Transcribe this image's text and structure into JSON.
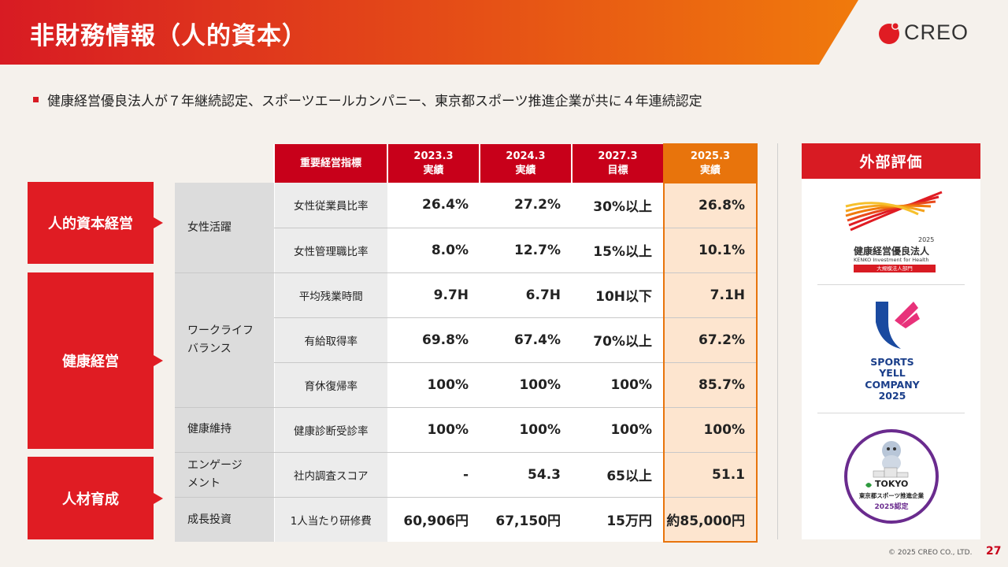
{
  "header": {
    "title": "非財務情報（人的資本）",
    "logo_text": "CREO",
    "gradient": [
      "#d81b23",
      "#f07a0c"
    ]
  },
  "summary": "健康経営優良法人が７年継続認定、スポーツエールカンパニー、東京都スポーツ推進企業が共に４年連続認定",
  "groups": [
    {
      "label": "人的資本経営"
    },
    {
      "label": "健康経営"
    },
    {
      "label": "人材育成"
    }
  ],
  "table": {
    "columns": [
      "重要経営指標",
      "2023.3\n実績",
      "2024.3\n実績",
      "2027.3\n目標",
      "2025.3\n実績"
    ],
    "categories": [
      "女性活躍",
      "ワークライフ\nバランス",
      "健康維持",
      "エンゲージ\nメント",
      "成長投資"
    ],
    "rows": [
      {
        "indicator": "女性従業員比率",
        "v2023": "26.4%",
        "v2024": "27.2%",
        "target": "30%以上",
        "v2025": "26.8%"
      },
      {
        "indicator": "女性管理職比率",
        "v2023": "8.0%",
        "v2024": "12.7%",
        "target": "15%以上",
        "v2025": "10.1%"
      },
      {
        "indicator": "平均残業時間",
        "v2023": "9.7H",
        "v2024": "6.7H",
        "target": "10H以下",
        "v2025": "7.1H"
      },
      {
        "indicator": "有給取得率",
        "v2023": "69.8%",
        "v2024": "67.4%",
        "target": "70%以上",
        "v2025": "67.2%"
      },
      {
        "indicator": "育休復帰率",
        "v2023": "100%",
        "v2024": "100%",
        "target": "100%",
        "v2025": "85.7%"
      },
      {
        "indicator": "健康診断受診率",
        "v2023": "100%",
        "v2024": "100%",
        "target": "100%",
        "v2025": "100%"
      },
      {
        "indicator": "社内調査スコア",
        "v2023": "-",
        "v2024": "54.3",
        "target": "65以上",
        "v2025": "51.1"
      },
      {
        "indicator": "1人当たり研修費",
        "v2023": "60,906円",
        "v2024": "67,150円",
        "target": "15万円",
        "v2025": "約85,000円"
      }
    ]
  },
  "external": {
    "heading": "外部評価",
    "award1": {
      "year": "2025",
      "title": "健康経営優良法人",
      "subtitle": "KENKO Investment for Health",
      "badge": "大規模法人部門"
    },
    "award2": {
      "lines": [
        "SPORTS",
        "YELL",
        "COMPANY",
        "2025"
      ]
    },
    "award3": {
      "brand": "TOKYO",
      "title": "東京都スポーツ推進企業",
      "year": "2025認定"
    }
  },
  "footer": {
    "copyright": "© 2025 CREO CO., LTD.",
    "page": "27"
  }
}
